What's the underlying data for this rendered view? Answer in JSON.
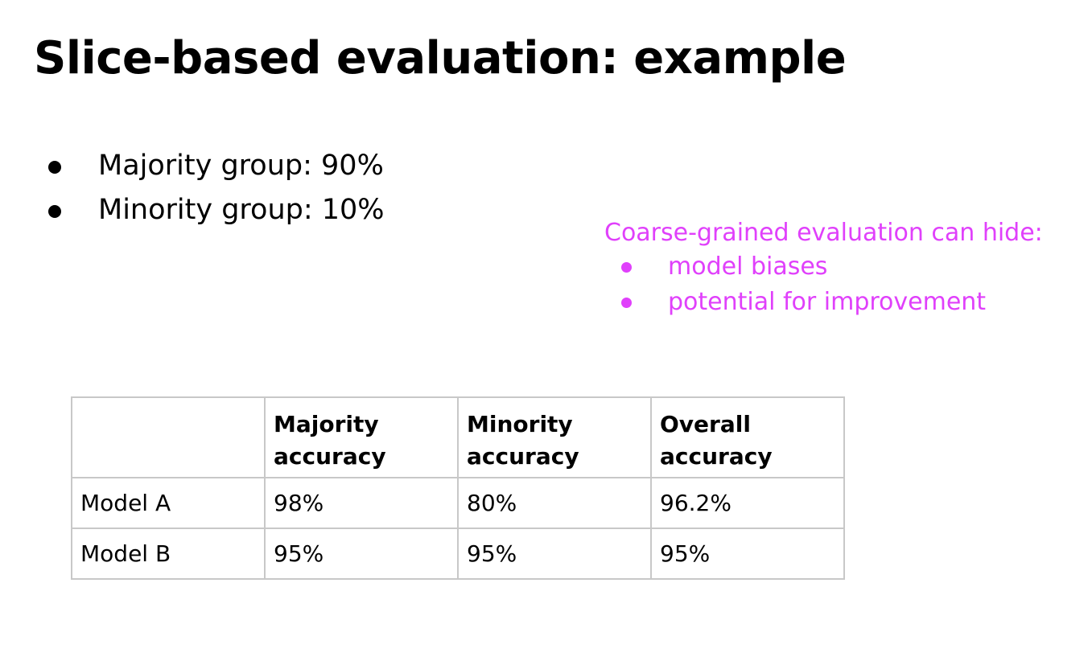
{
  "title": "Slice-based evaluation: example",
  "bullets": [
    "Majority group: 90%",
    "Minority group: 10%"
  ],
  "note": {
    "heading": "Coarse-grained evaluation can hide:",
    "items": [
      "model biases",
      "potential for improvement"
    ],
    "color": "#e040fb"
  },
  "table": {
    "headers": [
      "",
      "Majority accuracy",
      "Minority accuracy",
      "Overall accuracy"
    ],
    "rows": [
      [
        "Model A",
        "98%",
        "80%",
        "96.2%"
      ],
      [
        "Model B",
        "95%",
        "95%",
        "95%"
      ]
    ]
  }
}
